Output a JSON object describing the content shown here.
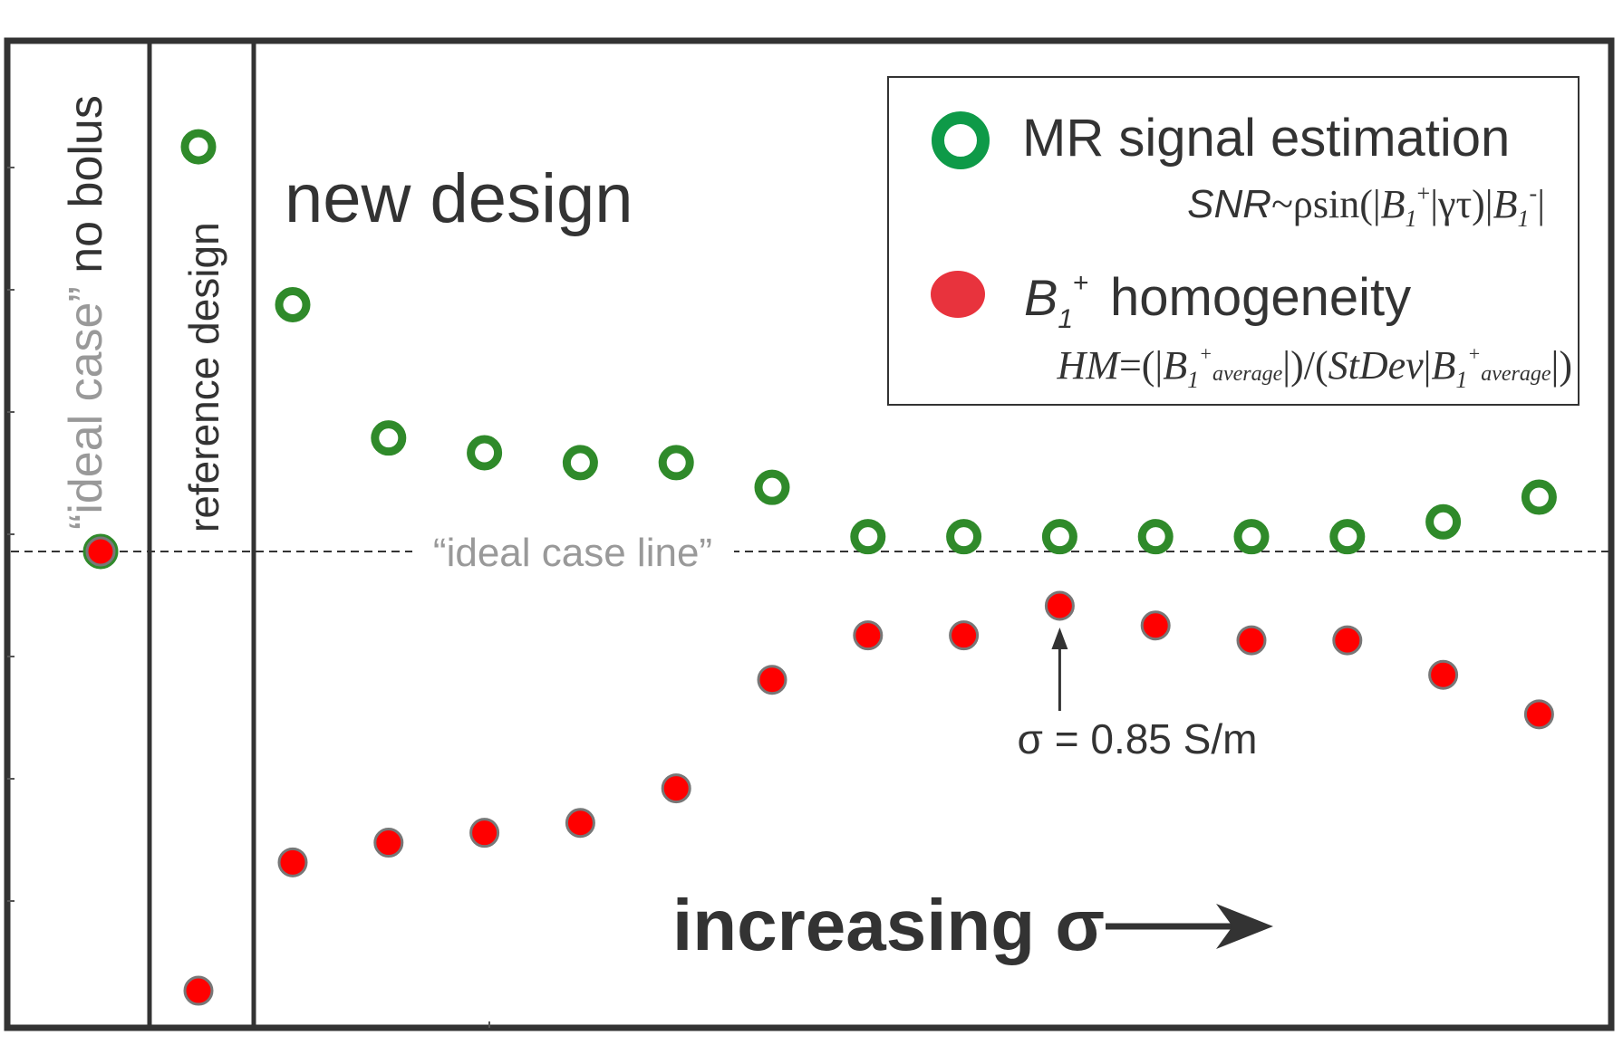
{
  "chart_data": {
    "type": "scatter",
    "title": "",
    "xlabel": "increasing σ",
    "ylabel": "",
    "ylim": [
      0,
      10
    ],
    "grid": false,
    "legend_position": "top-right",
    "reference_line": {
      "label": "“ideal case line”",
      "y": 5
    },
    "panels": [
      {
        "key": "ideal",
        "label_grey": "“ideal case”",
        "label_dark": " no bolus"
      },
      {
        "key": "reference",
        "label": "reference design"
      },
      {
        "key": "new",
        "label": "new design"
      }
    ],
    "series": [
      {
        "name": "MR signal estimation",
        "formula": "SNR~ρsin(|B1+|γτ)|B1-|",
        "marker": "ring",
        "color": "#2f8a2a",
        "ideal": 5.0,
        "reference": 9.1,
        "new_design": [
          7.5,
          6.15,
          6.0,
          5.9,
          5.9,
          5.65,
          5.15,
          5.15,
          5.15,
          5.15,
          5.15,
          5.15,
          5.3,
          5.55
        ]
      },
      {
        "name": "B1+ homogeneity",
        "formula": "HM=(|B1+average|)/(StDev|B1+average|)",
        "marker": "dot",
        "color": "#ee1c1c",
        "ideal": 5.0,
        "reference": 0.55,
        "new_design": [
          1.85,
          2.05,
          2.15,
          2.25,
          2.6,
          3.7,
          4.15,
          4.15,
          4.45,
          4.25,
          4.1,
          4.1,
          3.75,
          3.35
        ]
      }
    ],
    "annotation": {
      "text": "σ = 0.85 S/m",
      "target_index": 8,
      "series": 1
    }
  },
  "legend": {
    "mr_label": "MR signal estimation",
    "hm_label": "homogeneity"
  },
  "colors": {
    "green": "#2f8a2a",
    "red": "#ee1c1c",
    "frame": "#333333",
    "grey": "#999999"
  }
}
